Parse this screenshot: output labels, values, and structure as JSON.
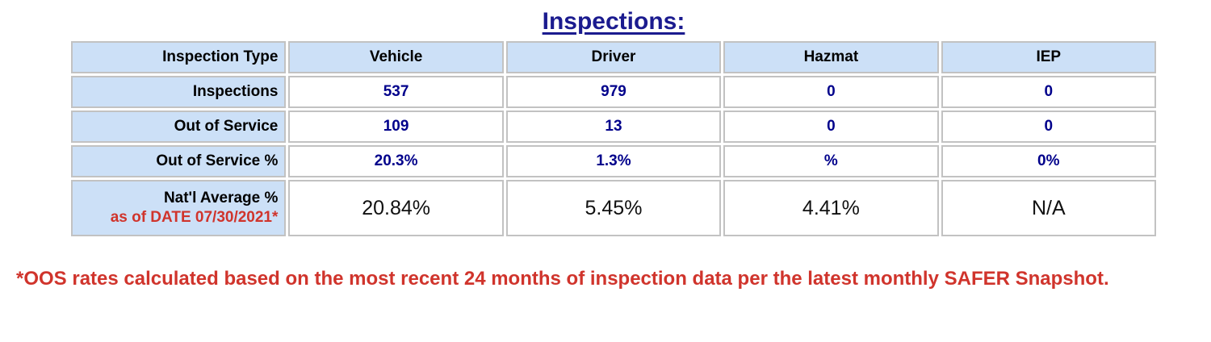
{
  "title": "Inspections:",
  "table": {
    "headers": [
      "Inspection Type",
      "Vehicle",
      "Driver",
      "Hazmat",
      "IEP"
    ],
    "rows": [
      {
        "label": "Inspections",
        "values": [
          "537",
          "979",
          "0",
          "0"
        ]
      },
      {
        "label": "Out of Service",
        "values": [
          "109",
          "13",
          "0",
          "0"
        ]
      },
      {
        "label": "Out of Service %",
        "values": [
          "20.3%",
          "1.3%",
          "%",
          "0%"
        ]
      },
      {
        "label": "Nat'l Average %",
        "sublabel": "as of DATE 07/30/2021*",
        "values": [
          "20.84%",
          "5.45%",
          "4.41%",
          "N/A"
        ]
      }
    ]
  },
  "footnote": "*OOS rates calculated based on the most recent 24 months of inspection data per the latest monthly SAFER Snapshot.",
  "colors": {
    "header_fill": "#cce0f7",
    "value_text": "#00008B",
    "alert_text": "#d0342c",
    "border": "#c2c2c2"
  }
}
